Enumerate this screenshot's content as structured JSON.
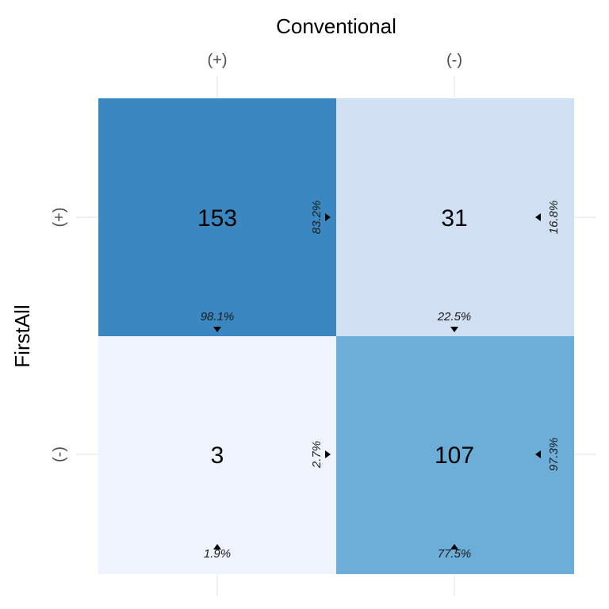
{
  "chart_data": {
    "type": "heatmap",
    "xlabel": "Conventional",
    "ylabel": "FirstAll",
    "x_categories": [
      "(+)",
      "(-)"
    ],
    "y_categories": [
      "(+)",
      "(-)"
    ],
    "colors": {
      "high": "#3a87c1",
      "mid": "#6caed8",
      "low": "#d0e0f2",
      "lowest": "#eff3fe"
    },
    "cells": [
      {
        "row": 0,
        "col": 0,
        "count": "153",
        "value": 153,
        "col_pct": "98.1%",
        "row_pct": "83.2%",
        "col_pct_position": "bottom",
        "color": "#3a87c1"
      },
      {
        "row": 0,
        "col": 1,
        "count": "31",
        "value": 31,
        "col_pct": "22.5%",
        "row_pct": "16.8%",
        "col_pct_position": "bottom",
        "color": "#d0e0f2"
      },
      {
        "row": 1,
        "col": 0,
        "count": "3",
        "value": 3,
        "col_pct": "1.9%",
        "row_pct": "2.7%",
        "col_pct_position": "top",
        "color": "#eff3fe"
      },
      {
        "row": 1,
        "col": 1,
        "count": "107",
        "value": 107,
        "col_pct": "77.5%",
        "row_pct": "97.3%",
        "col_pct_position": "top",
        "color": "#6caed8"
      }
    ]
  }
}
